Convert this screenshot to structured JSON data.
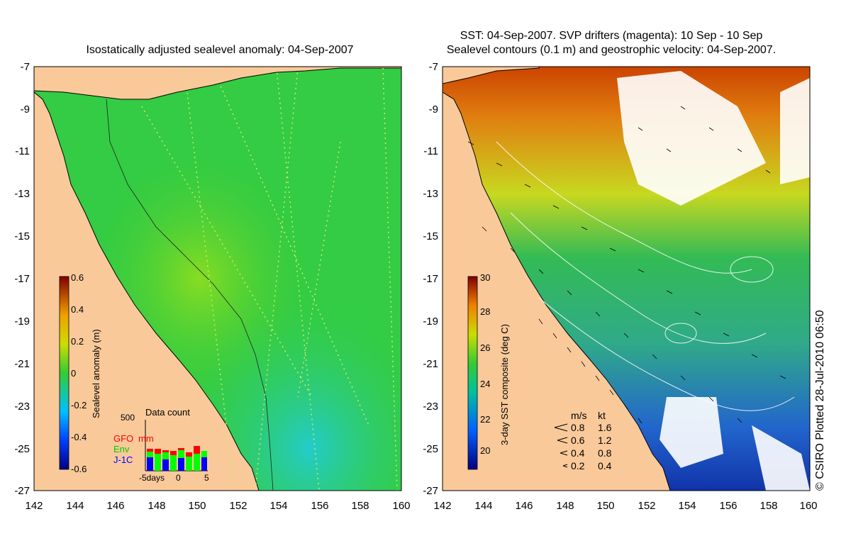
{
  "left_panel": {
    "title": "Isostatically adjusted sealevel anomaly: 04-Sep-2007",
    "y_ticks": [
      "-7",
      "-9",
      "-11",
      "-13",
      "-15",
      "-17",
      "-19",
      "-21",
      "-23",
      "-25",
      "-27"
    ],
    "x_ticks": [
      "142",
      "144",
      "146",
      "148",
      "150",
      "152",
      "154",
      "156",
      "158",
      "160"
    ],
    "colorbar": {
      "title": "Sealevel anomaly (m)",
      "labels": [
        "0.6",
        "0.4",
        "0.2",
        "0",
        "-0.2",
        "-0.4",
        "-0.6"
      ],
      "range": [
        -0.6,
        0.6
      ]
    },
    "data_count": {
      "title": "Data count",
      "max_label": "500",
      "legend": [
        {
          "label": "GFO",
          "color": "#ff0000"
        },
        {
          "label": "mm",
          "color": "#ff0000"
        },
        {
          "label": "Env",
          "color": "#00ff00"
        },
        {
          "label": "J-1C",
          "color": "#0000ff"
        }
      ],
      "x_labels": [
        "-5days",
        "0",
        "5"
      ]
    }
  },
  "right_panel": {
    "title_line1": "SST: 04-Sep-2007. SVP drifters (magenta): 10 Sep - 10 Sep",
    "title_line2": "Sealevel contours (0.1 m) and geostrophic velocity: 04-Sep-2007.",
    "y_ticks": [
      "-7",
      "-9",
      "-11",
      "-13",
      "-15",
      "-17",
      "-19",
      "-21",
      "-23",
      "-25",
      "-27"
    ],
    "x_ticks": [
      "142",
      "144",
      "146",
      "148",
      "150",
      "152",
      "154",
      "156",
      "158",
      "160"
    ],
    "colorbar": {
      "title": "3-day SST composite (deg C)",
      "labels": [
        "30",
        "28",
        "26",
        "24",
        "22",
        "20"
      ],
      "range": [
        19.5,
        30
      ]
    },
    "velocity_legend": {
      "header_ms": "m/s",
      "header_kt": "kt",
      "rows": [
        {
          "ms": "0.8",
          "kt": "1.6"
        },
        {
          "ms": "0.6",
          "kt": "1.2"
        },
        {
          "ms": "0.4",
          "kt": "0.8"
        },
        {
          "ms": "0.2",
          "kt": "0.4"
        }
      ]
    }
  },
  "credit": "© CSIRO Plotted 28-Jul-2010 06:50",
  "colors": {
    "land": "#f9c99a",
    "ocean_left": "#33cc33",
    "ocean_right": "#33bb66"
  }
}
